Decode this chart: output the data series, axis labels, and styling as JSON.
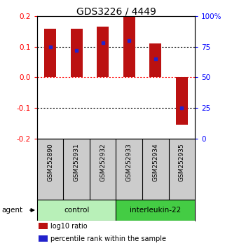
{
  "title": "GDS3226 / 4449",
  "samples": [
    "GSM252890",
    "GSM252931",
    "GSM252932",
    "GSM252933",
    "GSM252934",
    "GSM252935"
  ],
  "log10_values": [
    0.158,
    0.158,
    0.165,
    0.198,
    0.11,
    -0.155
  ],
  "percentile_ranks": [
    75,
    72,
    78,
    80,
    65,
    25
  ],
  "bar_color": "#bb1111",
  "blue_color": "#2222cc",
  "ylim": [
    -0.2,
    0.2
  ],
  "yticks_left": [
    -0.2,
    -0.1,
    0.0,
    0.1,
    0.2
  ],
  "yticks_right": [
    0,
    25,
    50,
    75,
    100
  ],
  "groups": [
    {
      "label": "control",
      "indices": [
        0,
        1,
        2
      ],
      "color": "#b8f0b8"
    },
    {
      "label": "interleukin-22",
      "indices": [
        3,
        4,
        5
      ],
      "color": "#44cc44"
    }
  ],
  "agent_label": "agent",
  "legend_items": [
    {
      "color": "#bb1111",
      "label": "log10 ratio"
    },
    {
      "color": "#2222cc",
      "label": "percentile rank within the sample"
    }
  ],
  "bar_width": 0.45,
  "title_fontsize": 10,
  "tick_fontsize": 7.5,
  "legend_fontsize": 7
}
